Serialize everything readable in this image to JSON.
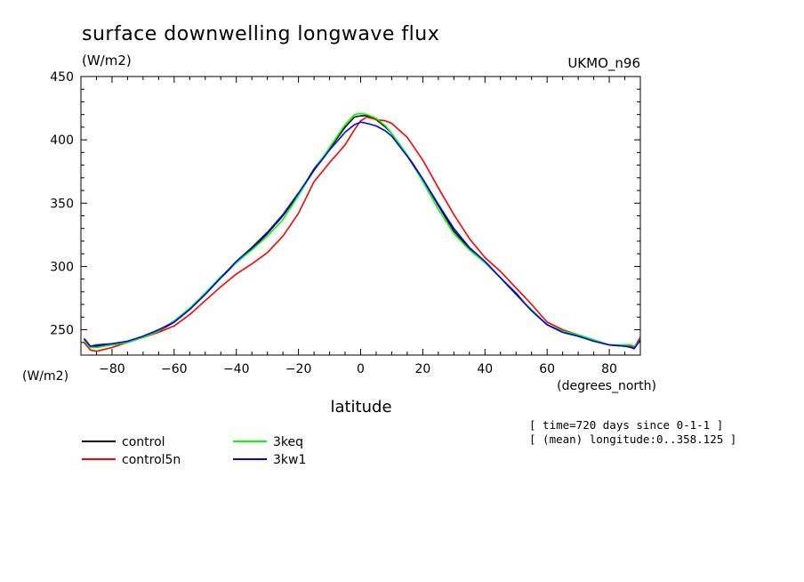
{
  "chart_data": {
    "type": "line",
    "title": "surface downwelling longwave flux",
    "units": "(W/m2)",
    "model": "UKMO_n96",
    "xlabel": "latitude",
    "x_units": "(degrees_north)",
    "y_units": "(W/m2)",
    "xlim": [
      -90,
      90
    ],
    "ylim": [
      230,
      450
    ],
    "xticks": [
      -80,
      -60,
      -40,
      -20,
      0,
      20,
      40,
      60,
      80
    ],
    "yticks": [
      250,
      300,
      350,
      400,
      450
    ],
    "grid": false,
    "legend_position": "bottom-left",
    "annotations": [
      "[ time=720 days since 0-1-1 ]",
      "[ (mean) longitude:0..358.125 ]"
    ],
    "x": [
      -89,
      -87,
      -85,
      -80,
      -75,
      -70,
      -65,
      -60,
      -55,
      -50,
      -45,
      -40,
      -35,
      -30,
      -25,
      -20,
      -15,
      -10,
      -5,
      -2,
      0,
      2,
      5,
      8,
      10,
      15,
      20,
      25,
      30,
      35,
      40,
      45,
      50,
      55,
      60,
      65,
      70,
      75,
      80,
      85,
      87,
      88,
      90
    ],
    "series": [
      {
        "name": "control",
        "color": "#000000",
        "values": [
          243,
          237,
          237,
          238,
          240,
          244,
          249,
          256,
          266,
          278,
          291,
          303,
          314,
          326,
          340,
          357,
          377,
          393,
          410,
          418,
          419,
          419,
          416,
          410,
          405,
          388,
          369,
          348,
          328,
          314,
          303,
          291,
          279,
          265,
          254,
          248,
          245,
          241,
          238,
          237,
          237,
          236,
          244
        ]
      },
      {
        "name": "control5n",
        "color": "#ff0000",
        "values": [
          240,
          234,
          233,
          236,
          240,
          244,
          248,
          253,
          262,
          273,
          284,
          294,
          302,
          311,
          324,
          342,
          367,
          382,
          396,
          408,
          415,
          418,
          416,
          415,
          413,
          402,
          384,
          362,
          341,
          322,
          307,
          296,
          283,
          270,
          256,
          250,
          246,
          242,
          238,
          237,
          237,
          236,
          244
        ]
      },
      {
        "name": "3keq",
        "color": "#00ff00",
        "values": [
          242,
          236,
          236,
          238,
          240,
          244,
          249,
          257,
          267,
          279,
          292,
          303,
          313,
          324,
          337,
          356,
          376,
          394,
          412,
          420,
          421,
          420,
          417,
          411,
          405,
          388,
          367,
          345,
          326,
          313,
          303,
          291,
          278,
          266,
          254,
          249,
          246,
          242,
          238,
          238,
          238,
          237,
          242
        ]
      },
      {
        "name": "3kw1",
        "color": "#0000ff",
        "values": [
          243,
          237,
          238,
          239,
          241,
          245,
          250,
          256,
          266,
          278,
          291,
          304,
          315,
          327,
          341,
          358,
          376,
          392,
          406,
          412,
          414,
          413,
          411,
          407,
          403,
          387,
          369,
          349,
          330,
          315,
          304,
          291,
          278,
          265,
          254,
          248,
          245,
          241,
          238,
          237,
          236,
          235,
          242
        ]
      }
    ]
  }
}
